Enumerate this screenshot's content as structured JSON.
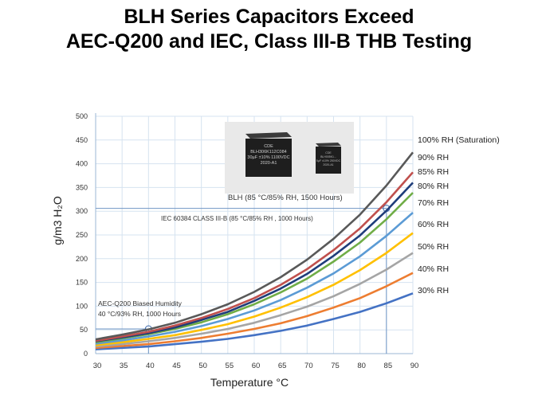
{
  "title_line1": "BLH Series Capacitors Exceed",
  "title_line2": "AEC-Q200 and IEC, Class III-B THB Testing",
  "chart_data": {
    "type": "line",
    "xlabel": "Temperature °C",
    "ylabel": "g/m3  H₂O",
    "x": [
      30,
      35,
      40,
      45,
      50,
      55,
      60,
      65,
      70,
      75,
      80,
      85,
      90
    ],
    "xlim": [
      30,
      90
    ],
    "ylim": [
      0,
      500
    ],
    "yticks": [
      0,
      50,
      100,
      150,
      200,
      250,
      300,
      350,
      400,
      450,
      500
    ],
    "grid": true,
    "series": [
      {
        "name": "100% RH (Saturation)",
        "color": "#595959",
        "values": [
          30,
          40,
          51,
          65,
          83,
          104,
          130,
          161,
          198,
          242,
          293,
          354,
          424
        ]
      },
      {
        "name": "90% RH",
        "color": "#c0504d",
        "values": [
          27,
          36,
          46,
          59,
          75,
          94,
          117,
          145,
          178,
          218,
          264,
          319,
          382
        ]
      },
      {
        "name": "85% RH",
        "color": "#1f3d7a",
        "values": [
          26,
          34,
          43,
          55,
          71,
          88,
          111,
          137,
          168,
          206,
          249,
          301,
          360
        ]
      },
      {
        "name": "80% RH",
        "color": "#70ad47",
        "values": [
          24,
          32,
          41,
          52,
          66,
          83,
          104,
          129,
          158,
          194,
          234,
          283,
          339
        ]
      },
      {
        "name": "70% RH",
        "color": "#5b9bd5",
        "values": [
          21,
          28,
          36,
          46,
          58,
          73,
          91,
          113,
          139,
          169,
          205,
          248,
          297
        ]
      },
      {
        "name": "60% RH",
        "color": "#ffc000",
        "values": [
          18,
          24,
          31,
          39,
          50,
          62,
          78,
          97,
          119,
          145,
          176,
          212,
          254
        ]
      },
      {
        "name": "50% RH",
        "color": "#a5a5a5",
        "values": [
          15,
          20,
          26,
          33,
          42,
          52,
          65,
          81,
          99,
          121,
          147,
          177,
          212
        ]
      },
      {
        "name": "40% RH",
        "color": "#ed7d31",
        "values": [
          12,
          16,
          20,
          26,
          33,
          42,
          52,
          64,
          79,
          97,
          117,
          142,
          170
        ]
      },
      {
        "name": "30% RH",
        "color": "#4472c4",
        "values": [
          9,
          12,
          15,
          20,
          25,
          31,
          39,
          48,
          59,
          73,
          88,
          106,
          127
        ]
      }
    ],
    "annotations": [
      {
        "text": "BLH (85 °C/85% RH, 1500 Hours)"
      },
      {
        "text": "IEC 60384  CLASS III-B (85 °C/85% RH , 1000  Hours)"
      },
      {
        "text_line1": "AEC-Q200 Biased Humidity",
        "text_line2": "40 °C/93% RH, 1000 Hours"
      }
    ],
    "markers": [
      {
        "x": 85,
        "y": 306
      },
      {
        "x": 40,
        "y": 52
      }
    ]
  },
  "photo": {
    "cap1_lines": [
      "CDE",
      "BLH306K112C084",
      "30µF ±10% 1100VDC",
      "2020-A1"
    ],
    "cap2_lines": [
      "CDE",
      "BLH005K1...",
      "5µF ±10% 250VDC",
      "2020-A1"
    ]
  }
}
